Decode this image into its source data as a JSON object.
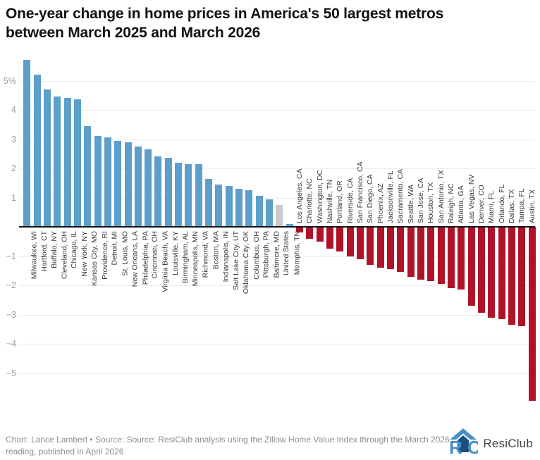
{
  "header": {
    "title_lines": [
      "One-year change in home prices in America's 50 largest metros",
      "between March 2025 and March 2026"
    ]
  },
  "footer": {
    "credit_lines": [
      "Chart: Lance Lambert • Source: Source: ResiClub analysis using the Zillow Home Value Index through the March 2026",
      "reading, published in April 2026"
    ],
    "brand": "ResiClub",
    "logo_icon": "resiclub-house-rc-monogram"
  },
  "colors": {
    "positive_bar": "#5C9FCB",
    "negative_bar": "#B01328",
    "national_bar": "#C9C9C9",
    "grid": "#ececec",
    "zero_line": "#161616",
    "tick_text": "#9b9b9b",
    "label_text": "#3b3b3b",
    "logo_blue": "#4A90C4",
    "logo_dark_blue": "#1D4F7E"
  },
  "chart_data": {
    "type": "bar",
    "title": "One-year change in home prices in America's 50 largest metros between March 2025 and March 2026",
    "xlabel": "",
    "ylabel": "",
    "unit": "%",
    "ylim": [
      -6.2,
      5.9
    ],
    "grid": true,
    "zero_baseline": true,
    "yticks": [
      {
        "value": 5,
        "label": "5%"
      },
      {
        "value": 4,
        "label": "4"
      },
      {
        "value": 3,
        "label": "3"
      },
      {
        "value": 2,
        "label": "2"
      },
      {
        "value": 1,
        "label": "1"
      },
      {
        "value": -1,
        "label": "−1"
      },
      {
        "value": -2,
        "label": "−2"
      },
      {
        "value": -3,
        "label": "−3"
      },
      {
        "value": -4,
        "label": "−4"
      },
      {
        "value": -5,
        "label": "−5"
      }
    ],
    "points": [
      {
        "label": "Milwaukee, WI",
        "value": 5.7
      },
      {
        "label": "Hartford, CT",
        "value": 5.2
      },
      {
        "label": "Buffalo, NY",
        "value": 4.7
      },
      {
        "label": "Cleveland, OH",
        "value": 4.45
      },
      {
        "label": "Chicago, IL",
        "value": 4.4
      },
      {
        "label": "New York, NY",
        "value": 4.35
      },
      {
        "label": "Kansas City, MO",
        "value": 3.45
      },
      {
        "label": "Providence, RI",
        "value": 3.1
      },
      {
        "label": "Detroit, MI",
        "value": 3.05
      },
      {
        "label": "St. Louis, MO",
        "value": 2.95
      },
      {
        "label": "New Orleans, LA",
        "value": 2.9
      },
      {
        "label": "Philadelphia, PA",
        "value": 2.75
      },
      {
        "label": "Cincinnati, OH",
        "value": 2.65
      },
      {
        "label": "Virginia Beach, VA",
        "value": 2.4
      },
      {
        "label": "Louisville, KY",
        "value": 2.35
      },
      {
        "label": "Birmingham, AL",
        "value": 2.2
      },
      {
        "label": "Minneapolis, MN",
        "value": 2.15
      },
      {
        "label": "Richmond, VA",
        "value": 2.15
      },
      {
        "label": "Boston, MA",
        "value": 1.65
      },
      {
        "label": "Indianapolis, IN",
        "value": 1.45
      },
      {
        "label": "Salt Lake City, UT",
        "value": 1.4
      },
      {
        "label": "Oklahoma City, OK",
        "value": 1.3
      },
      {
        "label": "Columbus, OH",
        "value": 1.25
      },
      {
        "label": "Pittsburgh, PA",
        "value": 1.05
      },
      {
        "label": "Baltimore, MD",
        "value": 0.95
      },
      {
        "label": "United States",
        "value": 0.75,
        "key": "national"
      },
      {
        "label": "Memphis, TN",
        "value": 0.1
      },
      {
        "label": "Los Angeles, CA",
        "value": -0.2
      },
      {
        "label": "Charlotte, NC",
        "value": -0.4
      },
      {
        "label": "Washington, DC",
        "value": -0.5
      },
      {
        "label": "Nashville, TN",
        "value": -0.75
      },
      {
        "label": "Portland, OR",
        "value": -0.85
      },
      {
        "label": "Riverside, CA",
        "value": -1.0
      },
      {
        "label": "San Francisco, CA",
        "value": -1.1
      },
      {
        "label": "San Diego, CA",
        "value": -1.3
      },
      {
        "label": "Phoenix, AZ",
        "value": -1.4
      },
      {
        "label": "Jacksonville, FL",
        "value": -1.45
      },
      {
        "label": "Sacramento, CA",
        "value": -1.55
      },
      {
        "label": "Seattle, WA",
        "value": -1.7
      },
      {
        "label": "San Jose, CA",
        "value": -1.8
      },
      {
        "label": "Houston, TX",
        "value": -1.85
      },
      {
        "label": "San Antonio, TX",
        "value": -1.95
      },
      {
        "label": "Raleigh, NC",
        "value": -2.1
      },
      {
        "label": "Atlanta, GA",
        "value": -2.15
      },
      {
        "label": "Las Vegas, NV",
        "value": -2.7
      },
      {
        "label": "Denver, CO",
        "value": -2.95
      },
      {
        "label": "Miami, FL",
        "value": -3.1
      },
      {
        "label": "Orlando, FL",
        "value": -3.15
      },
      {
        "label": "Dallas, TX",
        "value": -3.35
      },
      {
        "label": "Tampa, FL",
        "value": -3.4
      },
      {
        "label": "Austin, TX",
        "value": -5.95
      }
    ]
  }
}
